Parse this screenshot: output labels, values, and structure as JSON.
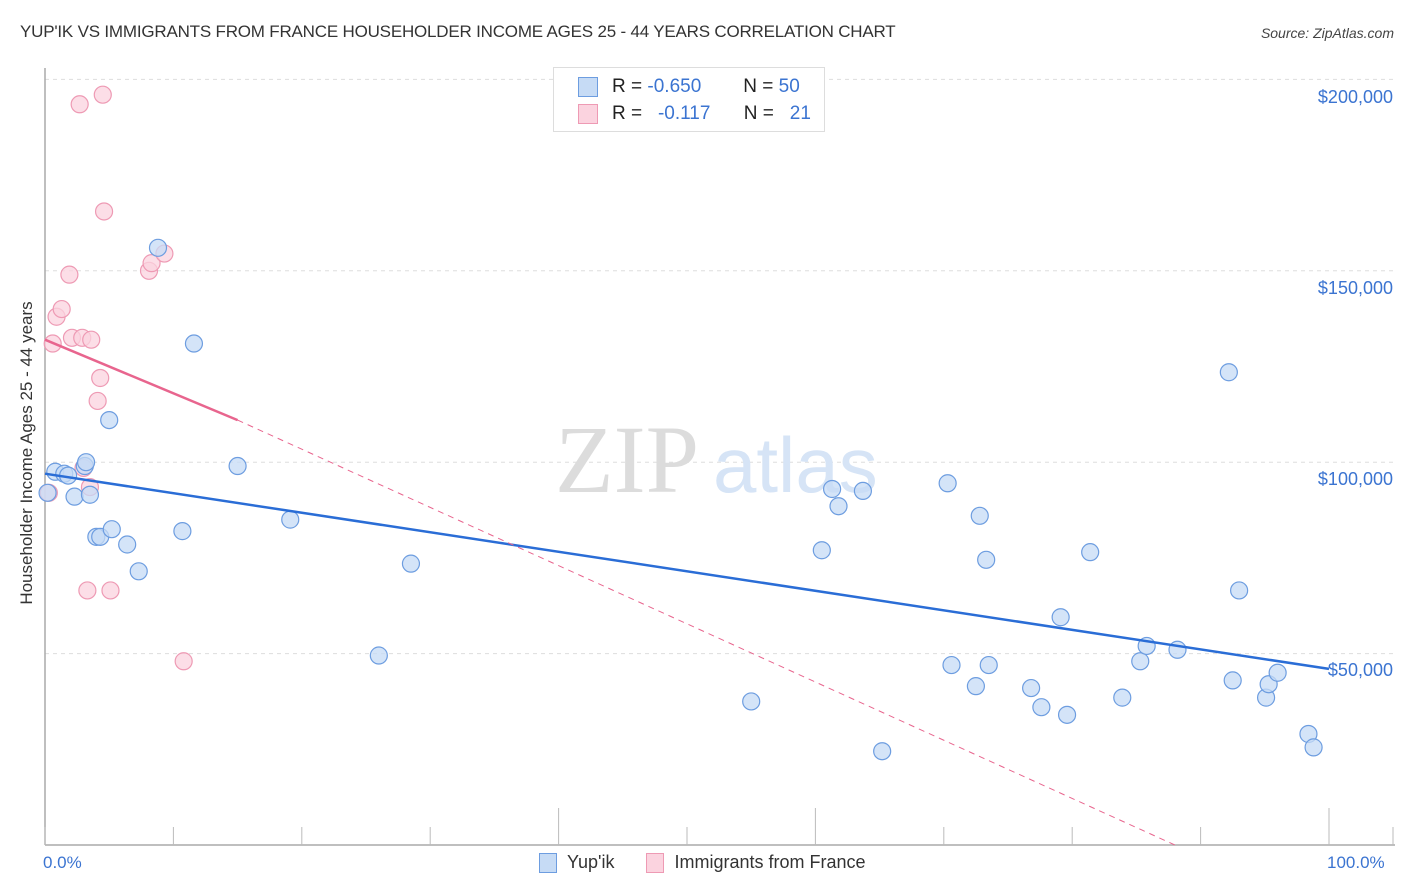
{
  "header": {
    "title": "YUP'IK VS IMMIGRANTS FROM FRANCE HOUSEHOLDER INCOME AGES 25 - 44 YEARS CORRELATION CHART",
    "source": "Source: ZipAtlas.com"
  },
  "watermark": {
    "zip": "ZIP",
    "atlas": "atlas"
  },
  "legend": {
    "rows": [
      {
        "r_label": "R =",
        "r_value": "-0.650",
        "n_label": "N =",
        "n_value": "50",
        "color": "#a9c8f0"
      },
      {
        "r_label": "R =",
        "r_value": "-0.117",
        "n_label": "N =",
        "n_value": "21",
        "color": "#f7b8cc"
      }
    ]
  },
  "axes": {
    "y_label": "Householder Income Ages 25 - 44 years",
    "y_ticks": [
      "$200,000",
      "$150,000",
      "$100,000",
      "$50,000"
    ],
    "x_ticks": [
      "0.0%",
      "100.0%"
    ]
  },
  "bottom_legend": [
    {
      "label": "Yup'ik",
      "color": "#a9c8f0"
    },
    {
      "label": "Immigrants from France",
      "color": "#f7b8cc"
    }
  ],
  "colors": {
    "blue_fill": "#c6dbf5",
    "blue_stroke": "#6d9de0",
    "blue_line": "#2a6dd6",
    "pink_fill": "#fbd3df",
    "pink_stroke": "#ee9ab4",
    "pink_line": "#e8658e",
    "tick_text": "#3b74d1"
  },
  "chart_data": {
    "type": "scatter",
    "title": "YUP'IK VS IMMIGRANTS FROM FRANCE HOUSEHOLDER INCOME AGES 25 - 44 YEARS CORRELATION CHART",
    "xlabel": "",
    "ylabel": "Householder Income Ages 25 - 44 years",
    "xlim": [
      0,
      100
    ],
    "ylim": [
      0,
      200000
    ],
    "x_tick_labels": [
      "0.0%",
      "100.0%"
    ],
    "y_tick_labels": [
      "$50,000",
      "$100,000",
      "$150,000",
      "$200,000"
    ],
    "grid": true,
    "legend_position": "top-center",
    "series": [
      {
        "name": "Yup'ik",
        "R": -0.65,
        "N": 50,
        "trend": {
          "x": [
            0,
            100
          ],
          "y": [
            97000,
            46000
          ]
        },
        "points": [
          [
            0.2,
            92000
          ],
          [
            0.8,
            97500
          ],
          [
            1.5,
            97000
          ],
          [
            1.8,
            96500
          ],
          [
            2.3,
            91000
          ],
          [
            3.1,
            99000
          ],
          [
            3.2,
            100000
          ],
          [
            3.5,
            91500
          ],
          [
            4.0,
            80500
          ],
          [
            4.3,
            80500
          ],
          [
            5.0,
            111000
          ],
          [
            5.2,
            82500
          ],
          [
            6.4,
            78500
          ],
          [
            7.3,
            71500
          ],
          [
            8.8,
            156000
          ],
          [
            10.7,
            82000
          ],
          [
            11.6,
            131000
          ],
          [
            15.0,
            99000
          ],
          [
            19.1,
            85000
          ],
          [
            28.5,
            73500
          ],
          [
            26.0,
            49500
          ],
          [
            55.0,
            37500
          ],
          [
            60.5,
            77000
          ],
          [
            61.3,
            93000
          ],
          [
            61.8,
            88500
          ],
          [
            63.7,
            92500
          ],
          [
            65.2,
            24500
          ],
          [
            70.3,
            94500
          ],
          [
            70.6,
            47000
          ],
          [
            72.5,
            41500
          ],
          [
            72.8,
            86000
          ],
          [
            73.3,
            74500
          ],
          [
            73.5,
            47000
          ],
          [
            76.8,
            41000
          ],
          [
            77.6,
            36000
          ],
          [
            79.1,
            59500
          ],
          [
            79.6,
            34000
          ],
          [
            81.4,
            76500
          ],
          [
            83.9,
            38500
          ],
          [
            85.3,
            48000
          ],
          [
            85.8,
            52000
          ],
          [
            88.2,
            51000
          ],
          [
            92.2,
            123500
          ],
          [
            92.5,
            43000
          ],
          [
            93.0,
            66500
          ],
          [
            95.1,
            38500
          ],
          [
            95.3,
            42000
          ],
          [
            96.0,
            45000
          ],
          [
            98.4,
            29000
          ],
          [
            98.8,
            25500
          ]
        ]
      },
      {
        "name": "Immigrants from France",
        "R": -0.117,
        "N": 21,
        "trend": {
          "x": [
            0,
            15
          ],
          "y": [
            132000,
            111000
          ],
          "dashed_extension_to": [
            88,
            0
          ]
        },
        "points": [
          [
            0.3,
            92000
          ],
          [
            0.6,
            131000
          ],
          [
            0.9,
            138000
          ],
          [
            1.3,
            140000
          ],
          [
            1.9,
            149000
          ],
          [
            2.1,
            132500
          ],
          [
            2.7,
            193500
          ],
          [
            2.9,
            132500
          ],
          [
            3.0,
            98500
          ],
          [
            3.6,
            132000
          ],
          [
            3.3,
            66500
          ],
          [
            3.5,
            93500
          ],
          [
            4.1,
            116000
          ],
          [
            4.3,
            122000
          ],
          [
            4.5,
            196000
          ],
          [
            4.6,
            165500
          ],
          [
            5.1,
            66500
          ],
          [
            8.1,
            150000
          ],
          [
            8.3,
            152000
          ],
          [
            9.3,
            154500
          ],
          [
            10.8,
            48000
          ]
        ]
      }
    ]
  }
}
